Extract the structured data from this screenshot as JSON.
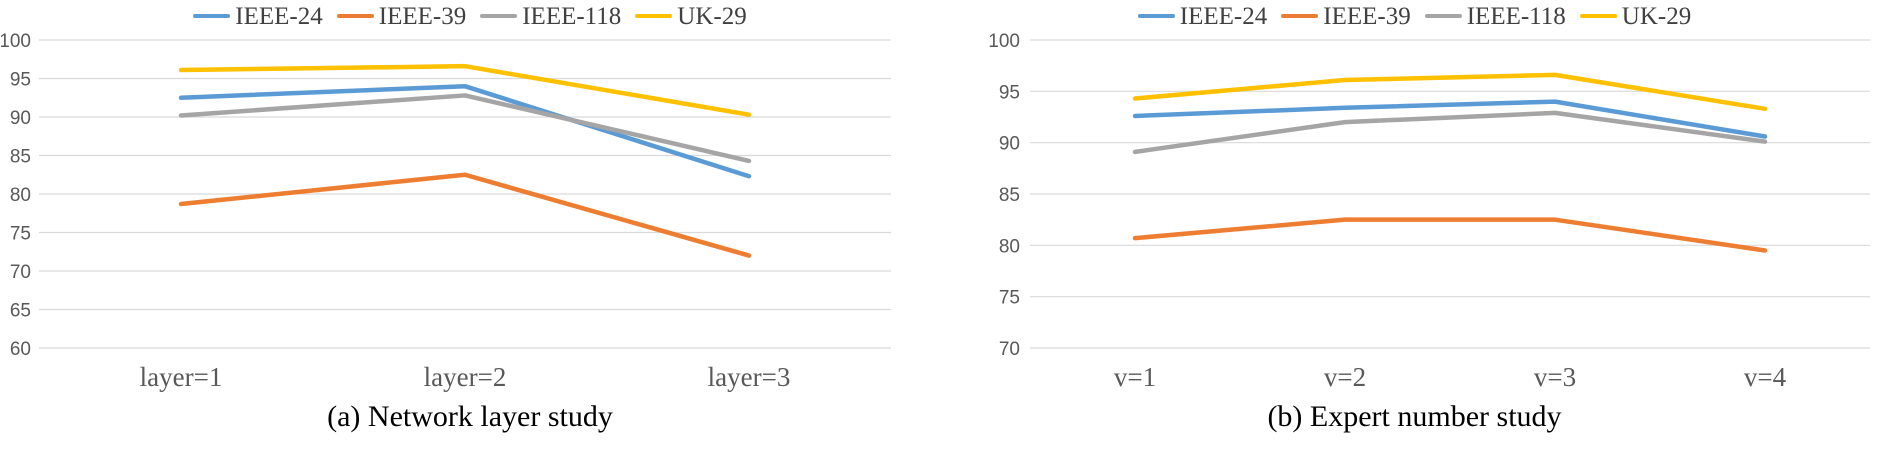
{
  "figure": {
    "captions": {
      "a": "(a) Network layer study",
      "b": "(b) Expert number study"
    }
  },
  "colors": {
    "ieee_24": "#5B9BD5",
    "ieee_39": "#ED7D31",
    "ieee_118": "#A5A5A5",
    "uk_29": "#FFC000",
    "gridline": "#D9D9D9",
    "tick_label": "#595959",
    "axis_label": "#595959",
    "caption_text": "#000000"
  },
  "chart_data": [
    {
      "type": "line",
      "title": "",
      "caption": "(a) Network layer study",
      "xlabel": "",
      "ylabel": "",
      "categories": [
        "layer=1",
        "layer=2",
        "layer=3"
      ],
      "series": [
        {
          "name": "IEEE-24",
          "color": "#5B9BD5",
          "values": [
            92.5,
            94.0,
            82.3
          ]
        },
        {
          "name": "IEEE-39",
          "color": "#ED7D31",
          "values": [
            78.7,
            82.5,
            72.0
          ]
        },
        {
          "name": "IEEE-118",
          "color": "#A5A5A5",
          "values": [
            90.2,
            92.8,
            84.3
          ]
        },
        {
          "name": "UK-29",
          "color": "#FFC000",
          "values": [
            96.1,
            96.6,
            90.3
          ]
        }
      ],
      "ylim": [
        60,
        100
      ],
      "ytick_step": 5,
      "grid": true,
      "legend_position": "top"
    },
    {
      "type": "line",
      "title": "",
      "caption": "(b) Expert number study",
      "xlabel": "",
      "ylabel": "",
      "categories": [
        "v=1",
        "v=2",
        "v=3",
        "v=4"
      ],
      "series": [
        {
          "name": "IEEE-24",
          "color": "#5B9BD5",
          "values": [
            92.6,
            93.4,
            94.0,
            90.6
          ]
        },
        {
          "name": "IEEE-39",
          "color": "#ED7D31",
          "values": [
            80.7,
            82.5,
            82.5,
            79.5
          ]
        },
        {
          "name": "IEEE-118",
          "color": "#A5A5A5",
          "values": [
            89.1,
            92.0,
            92.9,
            90.1
          ]
        },
        {
          "name": "UK-29",
          "color": "#FFC000",
          "values": [
            94.3,
            96.1,
            96.6,
            93.3
          ]
        }
      ],
      "ylim": [
        70,
        100
      ],
      "ytick_step": 5,
      "grid": true,
      "legend_position": "top"
    }
  ]
}
